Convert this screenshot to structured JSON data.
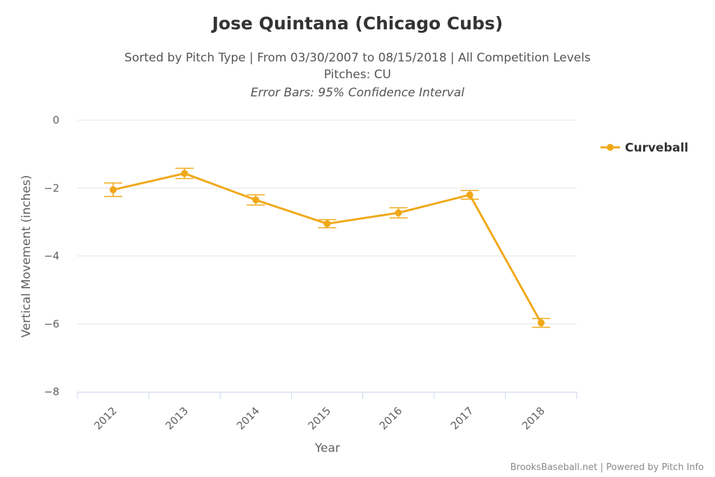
{
  "chart_data": {
    "type": "line",
    "title": "Jose Quintana (Chicago Cubs)",
    "subtitle": "Sorted by Pitch Type | From 03/30/2007 to 08/15/2018 | All Competition Levels",
    "subtitle2": "Pitches: CU",
    "subtitle3": "Error Bars: 95% Confidence Interval",
    "xlabel": "Year",
    "ylabel": "Vertical Movement (inches)",
    "categories": [
      "2012",
      "2013",
      "2014",
      "2015",
      "2016",
      "2017",
      "2018"
    ],
    "ylim": [
      -8,
      0
    ],
    "yticks": [
      0,
      -2,
      -4,
      -6,
      -8
    ],
    "ytick_labels": [
      "0",
      "−2",
      "−4",
      "−6",
      "−8"
    ],
    "grid": true,
    "legend_position": "right",
    "series": [
      {
        "name": "Curveball",
        "color": "#f0a818",
        "values": [
          -2.05,
          -1.57,
          -2.35,
          -3.05,
          -2.73,
          -2.2,
          -5.97
        ],
        "error_low": [
          -2.25,
          -1.72,
          -2.5,
          -3.17,
          -2.88,
          -2.33,
          -6.1
        ],
        "error_high": [
          -1.85,
          -1.42,
          -2.2,
          -2.93,
          -2.58,
          -2.07,
          -5.84
        ]
      }
    ],
    "credits": "BrooksBaseball.net | Powered by Pitch Info"
  }
}
